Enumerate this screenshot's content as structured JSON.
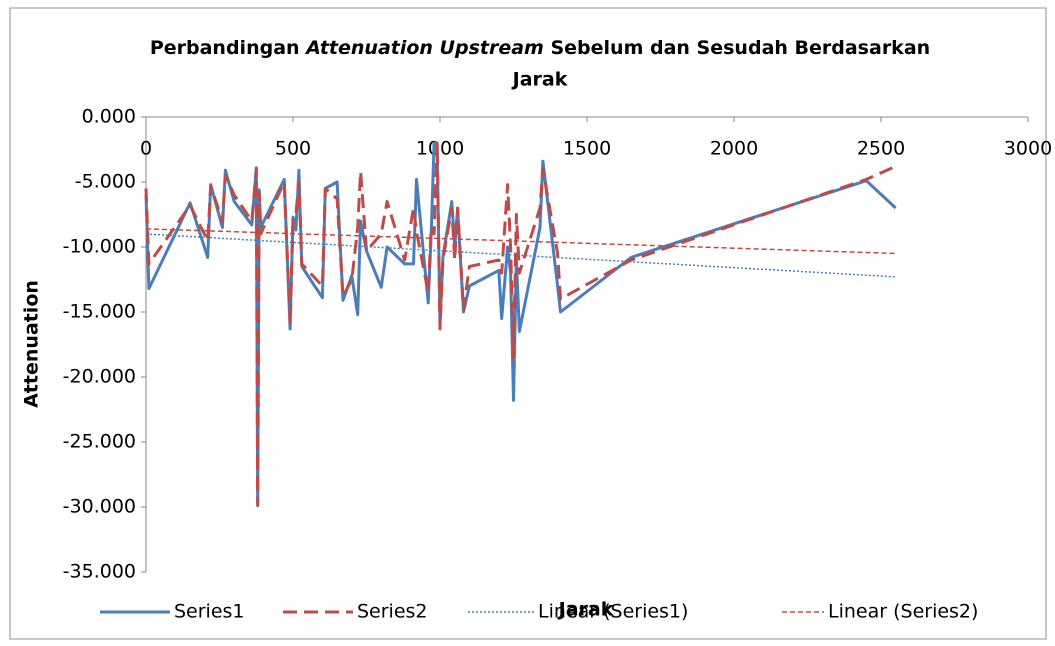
{
  "chart_data": {
    "type": "line",
    "title": [
      "Perbandingan",
      "Attenuation Upstream",
      "Sebelum dan Sesudah Berdasarkan",
      "Jarak"
    ],
    "xlabel": "Jarak",
    "ylabel": "Attenuation",
    "x": [
      0,
      10,
      150,
      210,
      220,
      260,
      270,
      300,
      360,
      375,
      380,
      385,
      390,
      470,
      490,
      500,
      510,
      520,
      530,
      600,
      610,
      650,
      670,
      700,
      720,
      730,
      750,
      800,
      820,
      880,
      910,
      920,
      960,
      970,
      980,
      990,
      1000,
      1010,
      1040,
      1050,
      1060,
      1080,
      1100,
      1200,
      1210,
      1230,
      1240,
      1250,
      1260,
      1270,
      1340,
      1350,
      1400,
      1410,
      1650,
      2450,
      2550
    ],
    "series": [
      {
        "name": "Series1",
        "color": "#4a7ebb",
        "values": [
          -6,
          -13.2,
          -6.6,
          -10.8,
          -5.2,
          -8.5,
          -4.1,
          -6.5,
          -8.3,
          -3.9,
          -29.9,
          -5.6,
          -8.5,
          -4.8,
          -16.3,
          -7.7,
          -8.7,
          -4.1,
          -11.5,
          -13.9,
          -5.5,
          -5.0,
          -14.1,
          -12.2,
          -15.2,
          -8.0,
          -10.3,
          -13.1,
          -10.0,
          -11.3,
          -11.3,
          -4.8,
          -14.3,
          -9.0,
          -2.0,
          -2.0,
          -16.0,
          -10.8,
          -6.5,
          -10.0,
          -7.1,
          -15.0,
          -13.0,
          -11.8,
          -15.5,
          -10.0,
          -12.0,
          -21.8,
          -11.0,
          -16.5,
          -8.5,
          -3.4,
          -13.0,
          -15.0,
          -10.8,
          -4.9,
          -7.0
        ]
      },
      {
        "name": "Series2",
        "color": "#be4b48",
        "values": [
          -5.5,
          -11.3,
          -6.8,
          -9.5,
          -5.3,
          -8.0,
          -4.5,
          -6.0,
          -8.0,
          -4.0,
          -29.8,
          -5.8,
          -9.0,
          -5.0,
          -15.9,
          -8.0,
          -7.5,
          -5.0,
          -11.3,
          -13.0,
          -5.5,
          -6.3,
          -13.8,
          -12.5,
          -8.5,
          -4.2,
          -10.3,
          -9.0,
          -6.5,
          -11.0,
          -7.0,
          -8.8,
          -13.5,
          -8.5,
          -9.0,
          -2.0,
          -16.3,
          -11.0,
          -7.0,
          -11.0,
          -7.0,
          -14.8,
          -11.5,
          -11.0,
          -12.0,
          -5.2,
          -10.0,
          -18.5,
          -7.5,
          -12.0,
          -7.0,
          -4.0,
          -10.5,
          -14.0,
          -11.0,
          -4.8,
          -3.8
        ]
      },
      {
        "name": "Linear (Series1)",
        "color": "#4a7ebb",
        "x": [
          0,
          2550
        ],
        "values": [
          -9.0,
          -12.3
        ]
      },
      {
        "name": "Linear (Series2)",
        "color": "#be4b48",
        "x": [
          0,
          2550
        ],
        "values": [
          -8.6,
          -10.5
        ]
      }
    ],
    "xlim": [
      0,
      3000
    ],
    "xticks": [
      0,
      500,
      1000,
      1500,
      2000,
      2500,
      3000
    ],
    "ylim": [
      -35,
      0
    ],
    "yticks": [
      {
        "value": 0,
        "label": "0.000"
      },
      {
        "value": -5,
        "label": "-5.000"
      },
      {
        "value": -10,
        "label": "-10.000"
      },
      {
        "value": -15,
        "label": "-15.000"
      },
      {
        "value": -20,
        "label": "-20.000"
      },
      {
        "value": -25,
        "label": "-25.000"
      },
      {
        "value": -30,
        "label": "-30.000"
      },
      {
        "value": -35,
        "label": "-35.000"
      }
    ],
    "legend": "bottom"
  }
}
